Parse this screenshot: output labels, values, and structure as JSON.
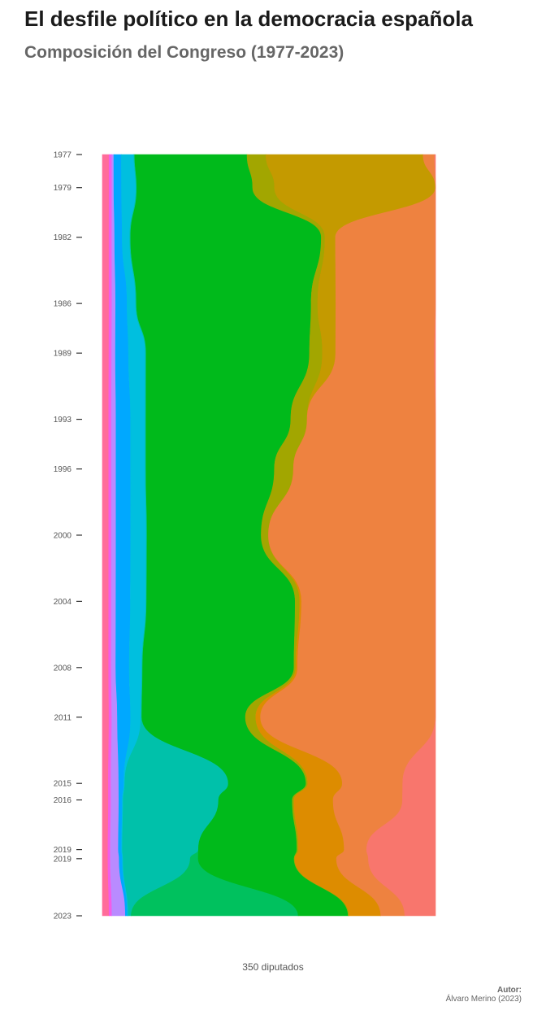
{
  "header": {
    "title": "El desfile político en la democracia española",
    "subtitle": "Composición del Congreso (1977-2023)"
  },
  "footer": {
    "xlabel": "350 diputados",
    "author_label": "Autor:",
    "author_name": "Álvaro Merino (2023)"
  },
  "chart_data": {
    "type": "area",
    "orientation": "vertical-stream",
    "title": "Composición del Congreso (1977-2023)",
    "xlabel": "350 diputados",
    "ylabel": "",
    "total_seats": 350,
    "years": [
      1977,
      1979,
      1982,
      1986,
      1989,
      1993,
      1996,
      2000,
      2004,
      2008,
      2011,
      2015,
      2016,
      2019,
      2019,
      2023
    ],
    "year_labels": [
      "1977",
      "1979",
      "1982",
      "1986",
      "1989",
      "1993",
      "1996",
      "2000",
      "2004",
      "2008",
      "2011",
      "2015",
      "2016",
      "2019",
      "2019",
      "2023"
    ],
    "series": [
      {
        "color": "#ff6c9a",
        "values": [
          7,
          7,
          7,
          7,
          7,
          7,
          7,
          7,
          7,
          7,
          7,
          7,
          7,
          7,
          7,
          7
        ]
      },
      {
        "color": "#f45ce8",
        "values": [
          3,
          3,
          3,
          3,
          3,
          3,
          3,
          3,
          3,
          3,
          3,
          3,
          3,
          3,
          3,
          3
        ]
      },
      {
        "color": "#b98bff",
        "values": [
          2,
          2,
          3,
          4,
          4,
          5,
          5,
          5,
          5,
          5,
          6,
          9,
          9,
          10,
          11,
          14
        ]
      },
      {
        "color": "#00a8ff",
        "values": [
          8,
          8,
          8,
          12,
          14,
          16,
          16,
          16,
          16,
          15,
          14,
          6,
          4,
          4,
          4,
          2
        ]
      },
      {
        "color": "#00bfdf",
        "values": [
          13,
          15,
          8,
          9,
          18,
          16,
          16,
          17,
          17,
          14,
          11,
          1,
          1,
          1,
          1,
          1
        ]
      },
      {
        "color": "#00c1aa",
        "values": [
          1,
          1,
          1,
          1,
          1,
          1,
          1,
          1,
          1,
          1,
          1,
          120,
          110,
          95,
          84,
          3
        ]
      },
      {
        "color": "#00c15e",
        "values": [
          0,
          0,
          0,
          0,
          0,
          0,
          0,
          0,
          0,
          0,
          0,
          0,
          0,
          0,
          10,
          174
        ]
      },
      {
        "color": "#00ba1b",
        "values": [
          118,
          121,
          202,
          184,
          175,
          159,
          141,
          125,
          164,
          169,
          110,
          90,
          85,
          123,
          120,
          52
        ]
      },
      {
        "color": "#a2a600",
        "values": [
          20,
          23,
          4,
          7,
          14,
          18,
          21,
          8,
          5,
          2,
          11,
          2,
          2,
          2,
          1,
          1
        ]
      },
      {
        "color": "#dd8c00",
        "values": [
          0,
          0,
          0,
          0,
          0,
          0,
          0,
          0,
          2,
          2,
          5,
          40,
          45,
          57,
          52,
          33
        ]
      },
      {
        "color": "#c49a00",
        "values": [
          165,
          168,
          11,
          19,
          14,
          0,
          0,
          0,
          0,
          0,
          0,
          0,
          0,
          0,
          0,
          0
        ]
      },
      {
        "color": "#ee8240",
        "values": [
          12,
          0,
          106,
          105,
          106,
          141,
          156,
          183,
          148,
          154,
          186,
          70,
          80,
          28,
          40,
          25
        ]
      },
      {
        "color": "#f8766d",
        "values": [
          1,
          0,
          0,
          0,
          1,
          0,
          0,
          0,
          0,
          0,
          0,
          38,
          38,
          86,
          84,
          32
        ]
      }
    ]
  }
}
